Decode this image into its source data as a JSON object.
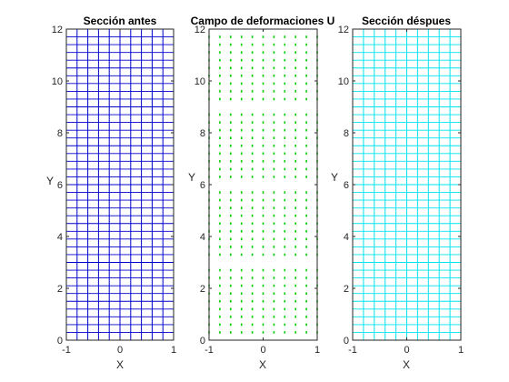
{
  "chart_data": [
    {
      "type": "scatter",
      "title": "Sección antes",
      "xlabel": "X",
      "ylabel": "Y",
      "xlim": [
        -1,
        1
      ],
      "ylim": [
        0,
        12
      ],
      "xticks": [
        "-1",
        "0",
        "1"
      ],
      "yticks": [
        "0",
        "2",
        "4",
        "6",
        "8",
        "10",
        "12"
      ],
      "grid_x": [
        -1,
        -0.8,
        -0.6,
        -0.4,
        -0.2,
        0,
        0.2,
        0.4,
        0.6,
        0.8,
        1
      ],
      "grid_y_step": 0.3,
      "line_color": "#0000cc",
      "representation": "mesh"
    },
    {
      "type": "scatter",
      "title": "Campo de deformaciones U",
      "xlabel": "X",
      "ylabel": "Y",
      "xlim": [
        -1,
        1
      ],
      "ylim": [
        0,
        12
      ],
      "xticks": [
        "-1",
        "0",
        "1"
      ],
      "yticks": [
        "0",
        "2",
        "4",
        "6",
        "8",
        "10",
        "12"
      ],
      "x_columns": [
        -1,
        -0.8,
        -0.6,
        -0.4,
        -0.2,
        0,
        0.2,
        0.4,
        0.6,
        0.8,
        1
      ],
      "y_bands": [
        [
          0.3,
          2.9
        ],
        [
          3.3,
          5.7
        ],
        [
          6.3,
          8.7
        ],
        [
          9.3,
          11.7
        ]
      ],
      "grid_y_step": 0.3,
      "marker_color": "#00cc00",
      "representation": "displacement-field"
    },
    {
      "type": "scatter",
      "title": "Sección déspues",
      "xlabel": "X",
      "ylabel": "Y",
      "xlim": [
        -1,
        1
      ],
      "ylim": [
        0,
        12
      ],
      "xticks": [
        "-1",
        "0",
        "1"
      ],
      "yticks": [
        "0",
        "2",
        "4",
        "6",
        "8",
        "10",
        "12"
      ],
      "grid_x": [
        -1,
        -0.8,
        -0.6,
        -0.4,
        -0.2,
        0,
        0.2,
        0.4,
        0.6,
        0.8,
        1
      ],
      "grid_y_step": 0.3,
      "line_color": "#00e5ee",
      "representation": "mesh"
    }
  ]
}
